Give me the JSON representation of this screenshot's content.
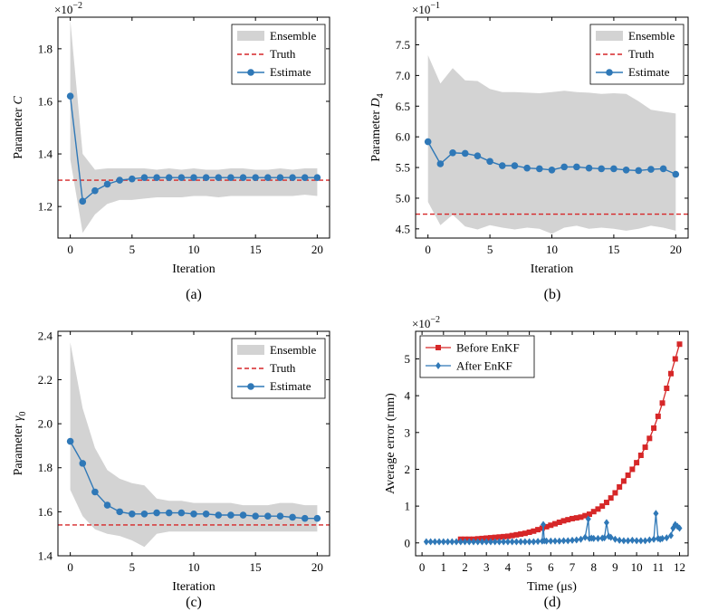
{
  "chart_data": [
    {
      "id": "a",
      "type": "line",
      "caption": "(a)",
      "xlabel": "Iteration",
      "ylabel": "Parameter C",
      "ylabel_italic": "C",
      "multiplier": "×10",
      "multiplier_exp": "−2",
      "xlim": [
        -1,
        21
      ],
      "ylim": [
        1.08,
        1.92
      ],
      "xticks": [
        0,
        5,
        10,
        15,
        20
      ],
      "yticks": [
        1.2,
        1.4,
        1.6,
        1.8
      ],
      "ytick_labels": [
        "1.2",
        "1.4",
        "1.6",
        "1.8"
      ],
      "legend": [
        "Ensemble",
        "Truth",
        "Estimate"
      ],
      "legend_pos": "top-right",
      "truth": 1.3,
      "x": [
        0,
        1,
        2,
        3,
        4,
        5,
        6,
        7,
        8,
        9,
        10,
        11,
        12,
        13,
        14,
        15,
        16,
        17,
        18,
        19,
        20
      ],
      "estimate": [
        1.62,
        1.22,
        1.26,
        1.285,
        1.3,
        1.305,
        1.31,
        1.31,
        1.31,
        1.31,
        1.31,
        1.31,
        1.31,
        1.31,
        1.31,
        1.31,
        1.31,
        1.31,
        1.31,
        1.31,
        1.31
      ],
      "ensemble_upper": [
        1.91,
        1.4,
        1.34,
        1.345,
        1.345,
        1.345,
        1.345,
        1.34,
        1.345,
        1.34,
        1.345,
        1.34,
        1.34,
        1.345,
        1.345,
        1.34,
        1.34,
        1.345,
        1.34,
        1.345,
        1.345
      ],
      "ensemble_lower": [
        1.38,
        1.1,
        1.17,
        1.21,
        1.225,
        1.225,
        1.23,
        1.235,
        1.235,
        1.235,
        1.24,
        1.24,
        1.235,
        1.24,
        1.24,
        1.24,
        1.24,
        1.24,
        1.24,
        1.245,
        1.24
      ]
    },
    {
      "id": "b",
      "type": "line",
      "caption": "(b)",
      "xlabel": "Iteration",
      "ylabel": "Parameter D",
      "ylabel_sub": "4",
      "multiplier": "×10",
      "multiplier_exp": "−1",
      "xlim": [
        -1,
        21
      ],
      "ylim": [
        4.35,
        7.95
      ],
      "xticks": [
        0,
        5,
        10,
        15,
        20
      ],
      "yticks": [
        4.5,
        5.0,
        5.5,
        6.0,
        6.5,
        7.0,
        7.5
      ],
      "ytick_labels": [
        "4.5",
        "5.0",
        "5.5",
        "6.0",
        "6.5",
        "7.0",
        "7.5"
      ],
      "legend": [
        "Ensemble",
        "Truth",
        "Estimate"
      ],
      "legend_pos": "top-right",
      "truth": 4.74,
      "x": [
        0,
        1,
        2,
        3,
        4,
        5,
        6,
        7,
        8,
        9,
        10,
        11,
        12,
        13,
        14,
        15,
        16,
        17,
        18,
        19,
        20
      ],
      "estimate": [
        5.92,
        5.56,
        5.74,
        5.73,
        5.69,
        5.6,
        5.53,
        5.53,
        5.49,
        5.48,
        5.46,
        5.51,
        5.51,
        5.49,
        5.48,
        5.48,
        5.46,
        5.45,
        5.47,
        5.48,
        5.39
      ],
      "ensemble_upper": [
        7.33,
        6.87,
        7.12,
        6.92,
        6.91,
        6.78,
        6.73,
        6.73,
        6.72,
        6.71,
        6.73,
        6.75,
        6.73,
        6.72,
        6.7,
        6.71,
        6.7,
        6.58,
        6.44,
        6.41,
        6.38
      ],
      "ensemble_lower": [
        4.94,
        4.56,
        4.73,
        4.54,
        4.49,
        4.56,
        4.52,
        4.49,
        4.52,
        4.5,
        4.42,
        4.52,
        4.55,
        4.5,
        4.52,
        4.5,
        4.47,
        4.5,
        4.55,
        4.52,
        4.47
      ]
    },
    {
      "id": "c",
      "type": "line",
      "caption": "(c)",
      "xlabel": "Iteration",
      "ylabel": "Parameter γ",
      "ylabel_sub": "0",
      "xlim": [
        -1,
        21
      ],
      "ylim": [
        1.4,
        2.42
      ],
      "xticks": [
        0,
        5,
        10,
        15,
        20
      ],
      "yticks": [
        1.4,
        1.6,
        1.8,
        2.0,
        2.2,
        2.4
      ],
      "ytick_labels": [
        "1.4",
        "1.6",
        "1.8",
        "2.0",
        "2.2",
        "2.4"
      ],
      "legend": [
        "Ensemble",
        "Truth",
        "Estimate"
      ],
      "legend_pos": "top-right",
      "truth": 1.54,
      "x": [
        0,
        1,
        2,
        3,
        4,
        5,
        6,
        7,
        8,
        9,
        10,
        11,
        12,
        13,
        14,
        15,
        16,
        17,
        18,
        19,
        20
      ],
      "estimate": [
        1.92,
        1.82,
        1.69,
        1.63,
        1.6,
        1.59,
        1.59,
        1.595,
        1.595,
        1.595,
        1.59,
        1.59,
        1.585,
        1.585,
        1.585,
        1.58,
        1.58,
        1.58,
        1.575,
        1.57,
        1.57
      ],
      "ensemble_upper": [
        2.37,
        2.07,
        1.89,
        1.79,
        1.75,
        1.73,
        1.72,
        1.66,
        1.65,
        1.65,
        1.64,
        1.64,
        1.64,
        1.64,
        1.63,
        1.63,
        1.63,
        1.64,
        1.64,
        1.63,
        1.63
      ],
      "ensemble_lower": [
        1.7,
        1.58,
        1.52,
        1.5,
        1.49,
        1.47,
        1.44,
        1.5,
        1.51,
        1.51,
        1.51,
        1.51,
        1.51,
        1.51,
        1.51,
        1.51,
        1.51,
        1.51,
        1.51,
        1.51,
        1.51
      ]
    },
    {
      "id": "d",
      "type": "line",
      "caption": "(d)",
      "xlabel": "Time (μs)",
      "ylabel": "Average error (mm)",
      "multiplier": "×10",
      "multiplier_exp": "−2",
      "xlim": [
        -0.3,
        12.4
      ],
      "ylim": [
        -0.35,
        5.75
      ],
      "xticks": [
        0,
        1,
        2,
        3,
        4,
        5,
        6,
        7,
        8,
        9,
        10,
        11,
        12
      ],
      "yticks": [
        0,
        1,
        2,
        3,
        4,
        5
      ],
      "ytick_labels": [
        "0",
        "1",
        "2",
        "3",
        "4",
        "5"
      ],
      "legend_pos": "top-left",
      "series": [
        {
          "name": "Before EnKF",
          "color": "#d62728",
          "marker": "square",
          "x": [
            1.8,
            2.0,
            2.2,
            2.4,
            2.6,
            2.8,
            3.0,
            3.2,
            3.4,
            3.6,
            3.8,
            4.0,
            4.2,
            4.4,
            4.6,
            4.8,
            5.0,
            5.2,
            5.4,
            5.6,
            5.8,
            6.0,
            6.2,
            6.4,
            6.6,
            6.8,
            7.0,
            7.2,
            7.4,
            7.6,
            7.8,
            8.0,
            8.2,
            8.4,
            8.6,
            8.8,
            9.0,
            9.2,
            9.4,
            9.6,
            9.8,
            10.0,
            10.2,
            10.4,
            10.6,
            10.8,
            11.0,
            11.2,
            11.4,
            11.6,
            11.8,
            12.0
          ],
          "values": [
            0.1,
            0.1,
            0.1,
            0.1,
            0.11,
            0.12,
            0.13,
            0.14,
            0.15,
            0.16,
            0.17,
            0.18,
            0.2,
            0.22,
            0.24,
            0.26,
            0.29,
            0.32,
            0.36,
            0.4,
            0.44,
            0.48,
            0.52,
            0.56,
            0.6,
            0.63,
            0.66,
            0.68,
            0.7,
            0.74,
            0.78,
            0.85,
            0.92,
            1.0,
            1.1,
            1.22,
            1.36,
            1.52,
            1.68,
            1.84,
            2.0,
            2.18,
            2.38,
            2.6,
            2.84,
            3.12,
            3.44,
            3.8,
            4.2,
            4.6,
            5.0,
            5.4
          ]
        },
        {
          "name": "After EnKF",
          "color": "#2f78b7",
          "marker": "diamond",
          "x": [
            0.2,
            0.4,
            0.6,
            0.8,
            1.0,
            1.2,
            1.4,
            1.6,
            1.8,
            2.0,
            2.2,
            2.4,
            2.6,
            2.8,
            3.0,
            3.2,
            3.4,
            3.6,
            3.8,
            4.0,
            4.2,
            4.4,
            4.6,
            4.8,
            5.0,
            5.2,
            5.4,
            5.6,
            5.65,
            5.7,
            5.8,
            6.0,
            6.2,
            6.4,
            6.6,
            6.8,
            7.0,
            7.2,
            7.4,
            7.6,
            7.75,
            7.8,
            7.9,
            8.0,
            8.2,
            8.4,
            8.5,
            8.6,
            8.7,
            8.8,
            9.0,
            9.2,
            9.4,
            9.6,
            9.8,
            10.0,
            10.2,
            10.4,
            10.6,
            10.8,
            10.9,
            11.0,
            11.1,
            11.2,
            11.4,
            11.6,
            11.7,
            11.8,
            11.9,
            12.0
          ],
          "values": [
            0.03,
            0.03,
            0.03,
            0.03,
            0.03,
            0.03,
            0.03,
            0.03,
            0.03,
            0.03,
            0.03,
            0.03,
            0.03,
            0.03,
            0.03,
            0.03,
            0.03,
            0.03,
            0.03,
            0.03,
            0.03,
            0.03,
            0.03,
            0.03,
            0.03,
            0.03,
            0.04,
            0.05,
            0.5,
            0.06,
            0.05,
            0.05,
            0.05,
            0.05,
            0.06,
            0.06,
            0.07,
            0.08,
            0.1,
            0.15,
            0.65,
            0.12,
            0.13,
            0.12,
            0.12,
            0.13,
            0.14,
            0.55,
            0.18,
            0.15,
            0.1,
            0.07,
            0.06,
            0.06,
            0.07,
            0.06,
            0.06,
            0.06,
            0.08,
            0.1,
            0.8,
            0.12,
            0.1,
            0.12,
            0.14,
            0.2,
            0.4,
            0.5,
            0.45,
            0.4
          ]
        }
      ]
    }
  ]
}
